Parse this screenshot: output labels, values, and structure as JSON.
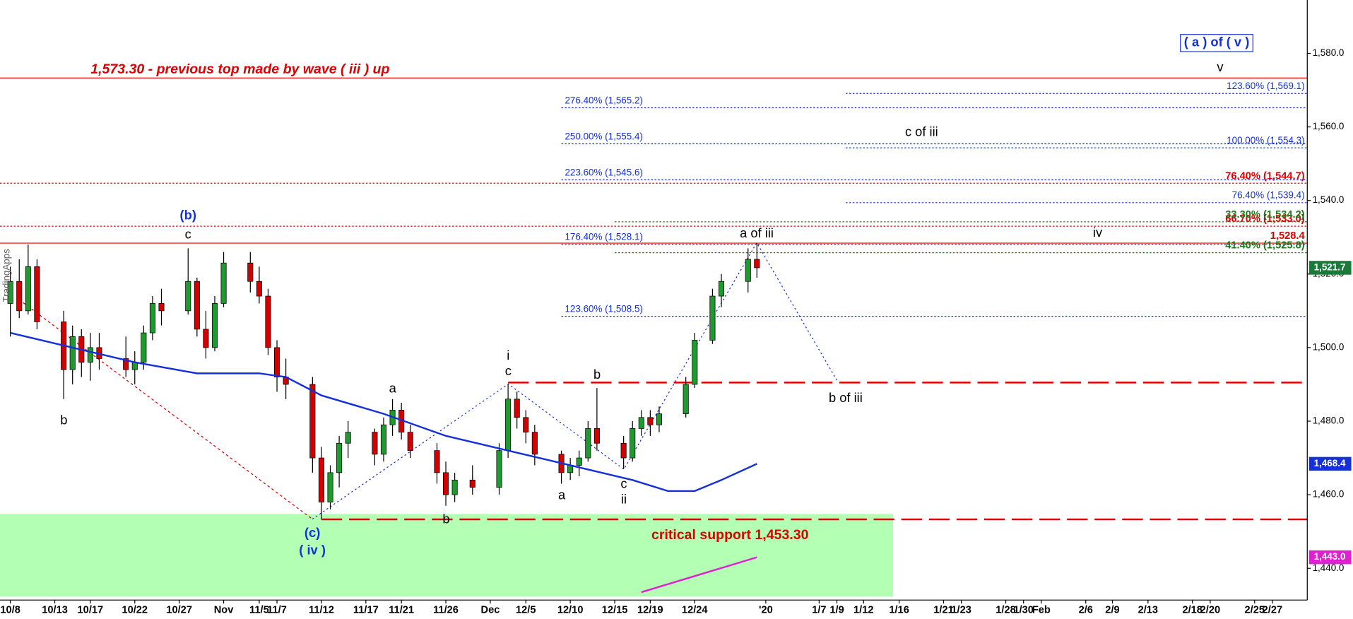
{
  "chart_data": {
    "type": "candlestick",
    "up_color": "#1f9a2e",
    "down_color": "#d40000",
    "x": [
      "10/8",
      "10/9",
      "10/10",
      "10/11",
      "10/14",
      "10/15",
      "10/16",
      "10/17",
      "10/18",
      "10/21",
      "10/22",
      "10/23",
      "10/24",
      "10/25",
      "10/28",
      "10/29",
      "10/30",
      "10/31",
      "11/1",
      "11/4",
      "11/5",
      "11/6",
      "11/7",
      "11/8",
      "11/11",
      "11/12",
      "11/13",
      "11/14",
      "11/15",
      "11/18",
      "11/19",
      "11/20",
      "11/21",
      "11/22",
      "11/25",
      "11/26",
      "11/27",
      "11/29",
      "12/2",
      "12/3",
      "12/4",
      "12/5",
      "12/6",
      "12/9",
      "12/10",
      "12/11",
      "12/12",
      "12/13",
      "12/16",
      "12/17",
      "12/18",
      "12/19",
      "12/20",
      "12/23",
      "12/24",
      "12/26",
      "12/27",
      "12/30",
      "12/31"
    ],
    "open": [
      1512,
      1518,
      1510,
      1522,
      1507,
      1494,
      1503,
      1496,
      1500,
      1497,
      1494,
      1496,
      1504,
      1512,
      1510,
      1518,
      1505,
      1500,
      1512,
      1523,
      1518,
      1514,
      1500,
      1492,
      1490,
      1470,
      1458,
      1466,
      1474,
      1477,
      1471,
      1479,
      1483,
      1477,
      1472,
      1466,
      1460,
      1464,
      1462,
      1472,
      1486,
      1481,
      1477,
      1471,
      1466,
      1468,
      1470,
      1478,
      1474,
      1470,
      1478,
      1481,
      1479,
      1482,
      1490,
      1502,
      1514,
      1518,
      1524
    ],
    "high": [
      1522,
      1524,
      1528,
      1524,
      1510,
      1506,
      1505,
      1504,
      1504,
      1503,
      1499,
      1506,
      1514,
      1516,
      1527,
      1519,
      1510,
      1514,
      1526,
      1526,
      1522,
      1516,
      1502,
      1497,
      1492,
      1473,
      1468,
      1476,
      1480,
      1478,
      1481,
      1486,
      1485,
      1479,
      1474,
      1469,
      1466,
      1468,
      1474,
      1490,
      1488,
      1483,
      1479,
      1472,
      1470,
      1472,
      1480,
      1489,
      1476,
      1480,
      1483,
      1483,
      1484,
      1492,
      1504,
      1516,
      1520,
      1527,
      1528.4
    ],
    "low": [
      1503,
      1508,
      1509,
      1505,
      1486,
      1490,
      1492,
      1491,
      1494,
      1492,
      1490,
      1494,
      1502,
      1506,
      1509,
      1503,
      1497,
      1499,
      1511,
      1515,
      1512,
      1498,
      1488,
      1486,
      1466,
      1453.3,
      1456,
      1462,
      1470,
      1468,
      1469,
      1476,
      1475,
      1470,
      1463,
      1457,
      1458,
      1460,
      1460,
      1470,
      1478,
      1474,
      1468,
      1463,
      1464,
      1465,
      1469,
      1472,
      1467,
      1469,
      1476,
      1476,
      1477,
      1481,
      1489,
      1501,
      1511,
      1515,
      1519
    ],
    "close": [
      1518,
      1510,
      1522,
      1507,
      1494,
      1503,
      1496,
      1500,
      1497,
      1494,
      1496,
      1504,
      1512,
      1510,
      1518,
      1505,
      1500,
      1512,
      1523,
      1518,
      1514,
      1500,
      1492,
      1490,
      1470,
      1458,
      1466,
      1474,
      1477,
      1471,
      1479,
      1483,
      1477,
      1472,
      1466,
      1460,
      1464,
      1462,
      1472,
      1486,
      1481,
      1477,
      1471,
      1466,
      1468,
      1470,
      1478,
      1474,
      1470,
      1478,
      1481,
      1479,
      1482,
      1490,
      1502,
      1514,
      1518,
      1524,
      1521.7
    ],
    "lines": [
      {
        "color": "#1530d8",
        "x": [
          "10/8",
          "10/15",
          "10/22",
          "10/29",
          "11/5",
          "11/8",
          "11/12",
          "11/19",
          "11/26",
          "12/3",
          "12/10",
          "12/17",
          "12/21",
          "12/24",
          "12/27",
          "12/31"
        ],
        "values": [
          1504,
          1500,
          1496,
          1493,
          1493,
          1492,
          1487,
          1482,
          1476,
          1472,
          1468,
          1464,
          1461,
          1461,
          1464,
          1468.4
        ]
      },
      {
        "color": "#e020d0",
        "x": [
          "12/18",
          "12/31"
        ],
        "values": [
          1433.5,
          1443
        ]
      }
    ],
    "price_tags": [
      {
        "value": 1521.7,
        "label": "1,521.7",
        "color": "#1a7a3a"
      },
      {
        "value": 1468.4,
        "label": "1,468.4",
        "color": "#1530d8"
      },
      {
        "value": 1443.0,
        "label": "1,443.0",
        "color": "#e020d0"
      }
    ],
    "levels": [
      {
        "value": 1573.3,
        "color": "#e00000",
        "style": "solid"
      },
      {
        "value": 1544.7,
        "color": "#e00000",
        "style": "dotted",
        "label": "76.40% (1,544.7)",
        "label_side": "right",
        "bold": true
      },
      {
        "value": 1533.0,
        "color": "#e00000",
        "style": "dotted",
        "label": "66.70% (1,533.0)",
        "label_side": "right",
        "bold": true
      },
      {
        "value": 1528.4,
        "color": "#e00000",
        "style": "solid",
        "label": "1,528.4",
        "label_side": "right",
        "bold": true
      },
      {
        "value": 1490.5,
        "color": "#e00000",
        "style": "dashed",
        "from": "12/3"
      },
      {
        "value": 1453.3,
        "color": "#e00000",
        "style": "dashed",
        "from": "11/12"
      },
      {
        "value": 1565.2,
        "color": "#1530d8",
        "style": "dotted",
        "from": "12/9",
        "label": "276.40% (1,565.2)",
        "label_side": "left"
      },
      {
        "value": 1555.4,
        "color": "#1530d8",
        "style": "dotted",
        "from": "12/9",
        "label": "250.00% (1,555.4)",
        "label_side": "left"
      },
      {
        "value": 1545.6,
        "color": "#1530d8",
        "style": "dotted",
        "from": "12/9",
        "label": "223.60% (1,545.6)",
        "label_side": "left"
      },
      {
        "value": 1528.1,
        "color": "#1530d8",
        "style": "dotted",
        "from": "12/9",
        "label": "176.40% (1,528.1)",
        "label_side": "left"
      },
      {
        "value": 1508.5,
        "color": "#1530d8",
        "style": "dotted",
        "from": "12/9",
        "label": "123.60% (1,508.5)",
        "label_side": "left"
      },
      {
        "value": 1569.1,
        "color": "#1530d8",
        "style": "dotted",
        "from": "1/10",
        "label": "123.60% (1,569.1)",
        "label_side": "right"
      },
      {
        "value": 1554.3,
        "color": "#1530d8",
        "style": "dotted",
        "from": "1/10",
        "label": "100.00% (1,554.3)",
        "label_side": "right"
      },
      {
        "value": 1539.4,
        "color": "#1530d8",
        "style": "dotted",
        "from": "1/10",
        "label": "76.40% (1,539.4)",
        "label_side": "right"
      },
      {
        "value": 1534.2,
        "color": "#1a7a1a",
        "style": "dotted",
        "from": "12/15",
        "label": "33.30% (1,534.2)",
        "label_side": "right",
        "bold": true
      },
      {
        "value": 1525.8,
        "color": "#1a7a1a",
        "style": "dotted",
        "from": "12/15",
        "label": "41.40% (1,525.8)",
        "label_side": "right",
        "bold": true
      }
    ],
    "annotations": [
      "1,573.30 - previous top made by wave ( iii ) up",
      "( a ) of ( v )",
      "v",
      "c of iii",
      "iv",
      "a of iii",
      "b of iii",
      "critical support 1,453.30",
      "(b)",
      "c",
      "b",
      "a",
      "(c)",
      "( iv )",
      "b",
      "i",
      "c",
      "a",
      "b",
      "c",
      "ii"
    ],
    "watermark": "TradingApps",
    "ylim": [
      1433,
      1594.5
    ],
    "yticks": [
      {
        "value": 1440,
        "label": "1,440.0"
      },
      {
        "value": 1460,
        "label": "1,460.0"
      },
      {
        "value": 1480,
        "label": "1,480.0"
      },
      {
        "value": 1500,
        "label": "1,500.0"
      },
      {
        "value": 1520,
        "label": "1,520.0"
      },
      {
        "value": 1540,
        "label": "1,540.0"
      },
      {
        "value": 1560,
        "label": "1,560.0"
      },
      {
        "value": 1580,
        "label": "1,580.0"
      }
    ],
    "xticks": [
      "10/8",
      "10/13",
      "10/17",
      "10/22",
      "10/27",
      {
        "value": "11/1",
        "label": "Nov"
      },
      "11/5",
      "11/7",
      "11/12",
      "11/17",
      "11/21",
      "11/26",
      {
        "value": "12/1",
        "label": "Dec"
      },
      "12/5",
      "12/10",
      "12/15",
      "12/19",
      "12/24",
      {
        "value": "1/1",
        "label": "'20"
      },
      "1/7",
      "1/9",
      "1/12",
      "1/16",
      "1/21",
      "1/23",
      "1/28",
      "1/30",
      {
        "value": "2/1",
        "label": "Feb"
      },
      "2/6",
      "2/9",
      "2/13",
      "2/18",
      "2/20",
      "2/25",
      "2/27"
    ]
  }
}
